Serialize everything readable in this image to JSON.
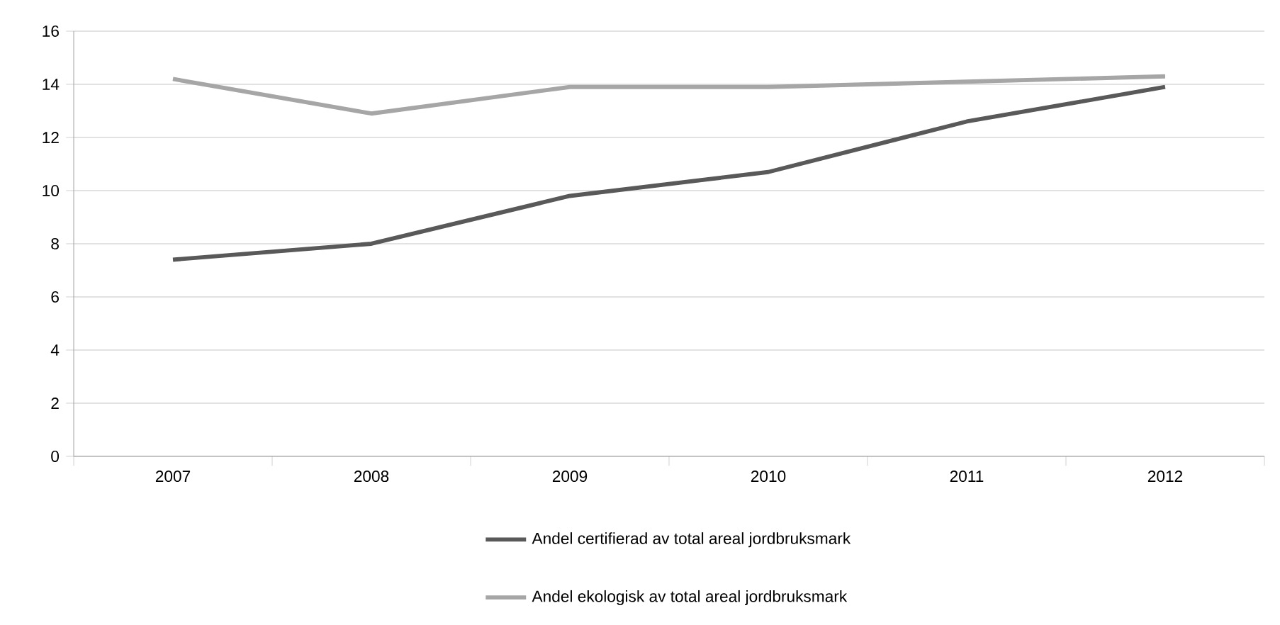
{
  "chart_data": {
    "type": "line",
    "categories": [
      "2007",
      "2008",
      "2009",
      "2010",
      "2011",
      "2012"
    ],
    "series": [
      {
        "name": "Andel certifierad av total areal jordbruksmark",
        "color": "#595959",
        "values": [
          7.4,
          8.0,
          9.8,
          10.7,
          12.6,
          13.9
        ]
      },
      {
        "name": "Andel ekologisk av total areal jordbruksmark",
        "color": "#a6a6a6",
        "values": [
          14.2,
          12.9,
          13.9,
          13.9,
          14.1,
          14.3
        ]
      }
    ],
    "ylim": [
      0,
      16
    ],
    "yticks": [
      0,
      2,
      4,
      6,
      8,
      10,
      12,
      14,
      16
    ],
    "grid": "y",
    "legend": "bottom",
    "marker": "none",
    "line_style": "solid"
  }
}
